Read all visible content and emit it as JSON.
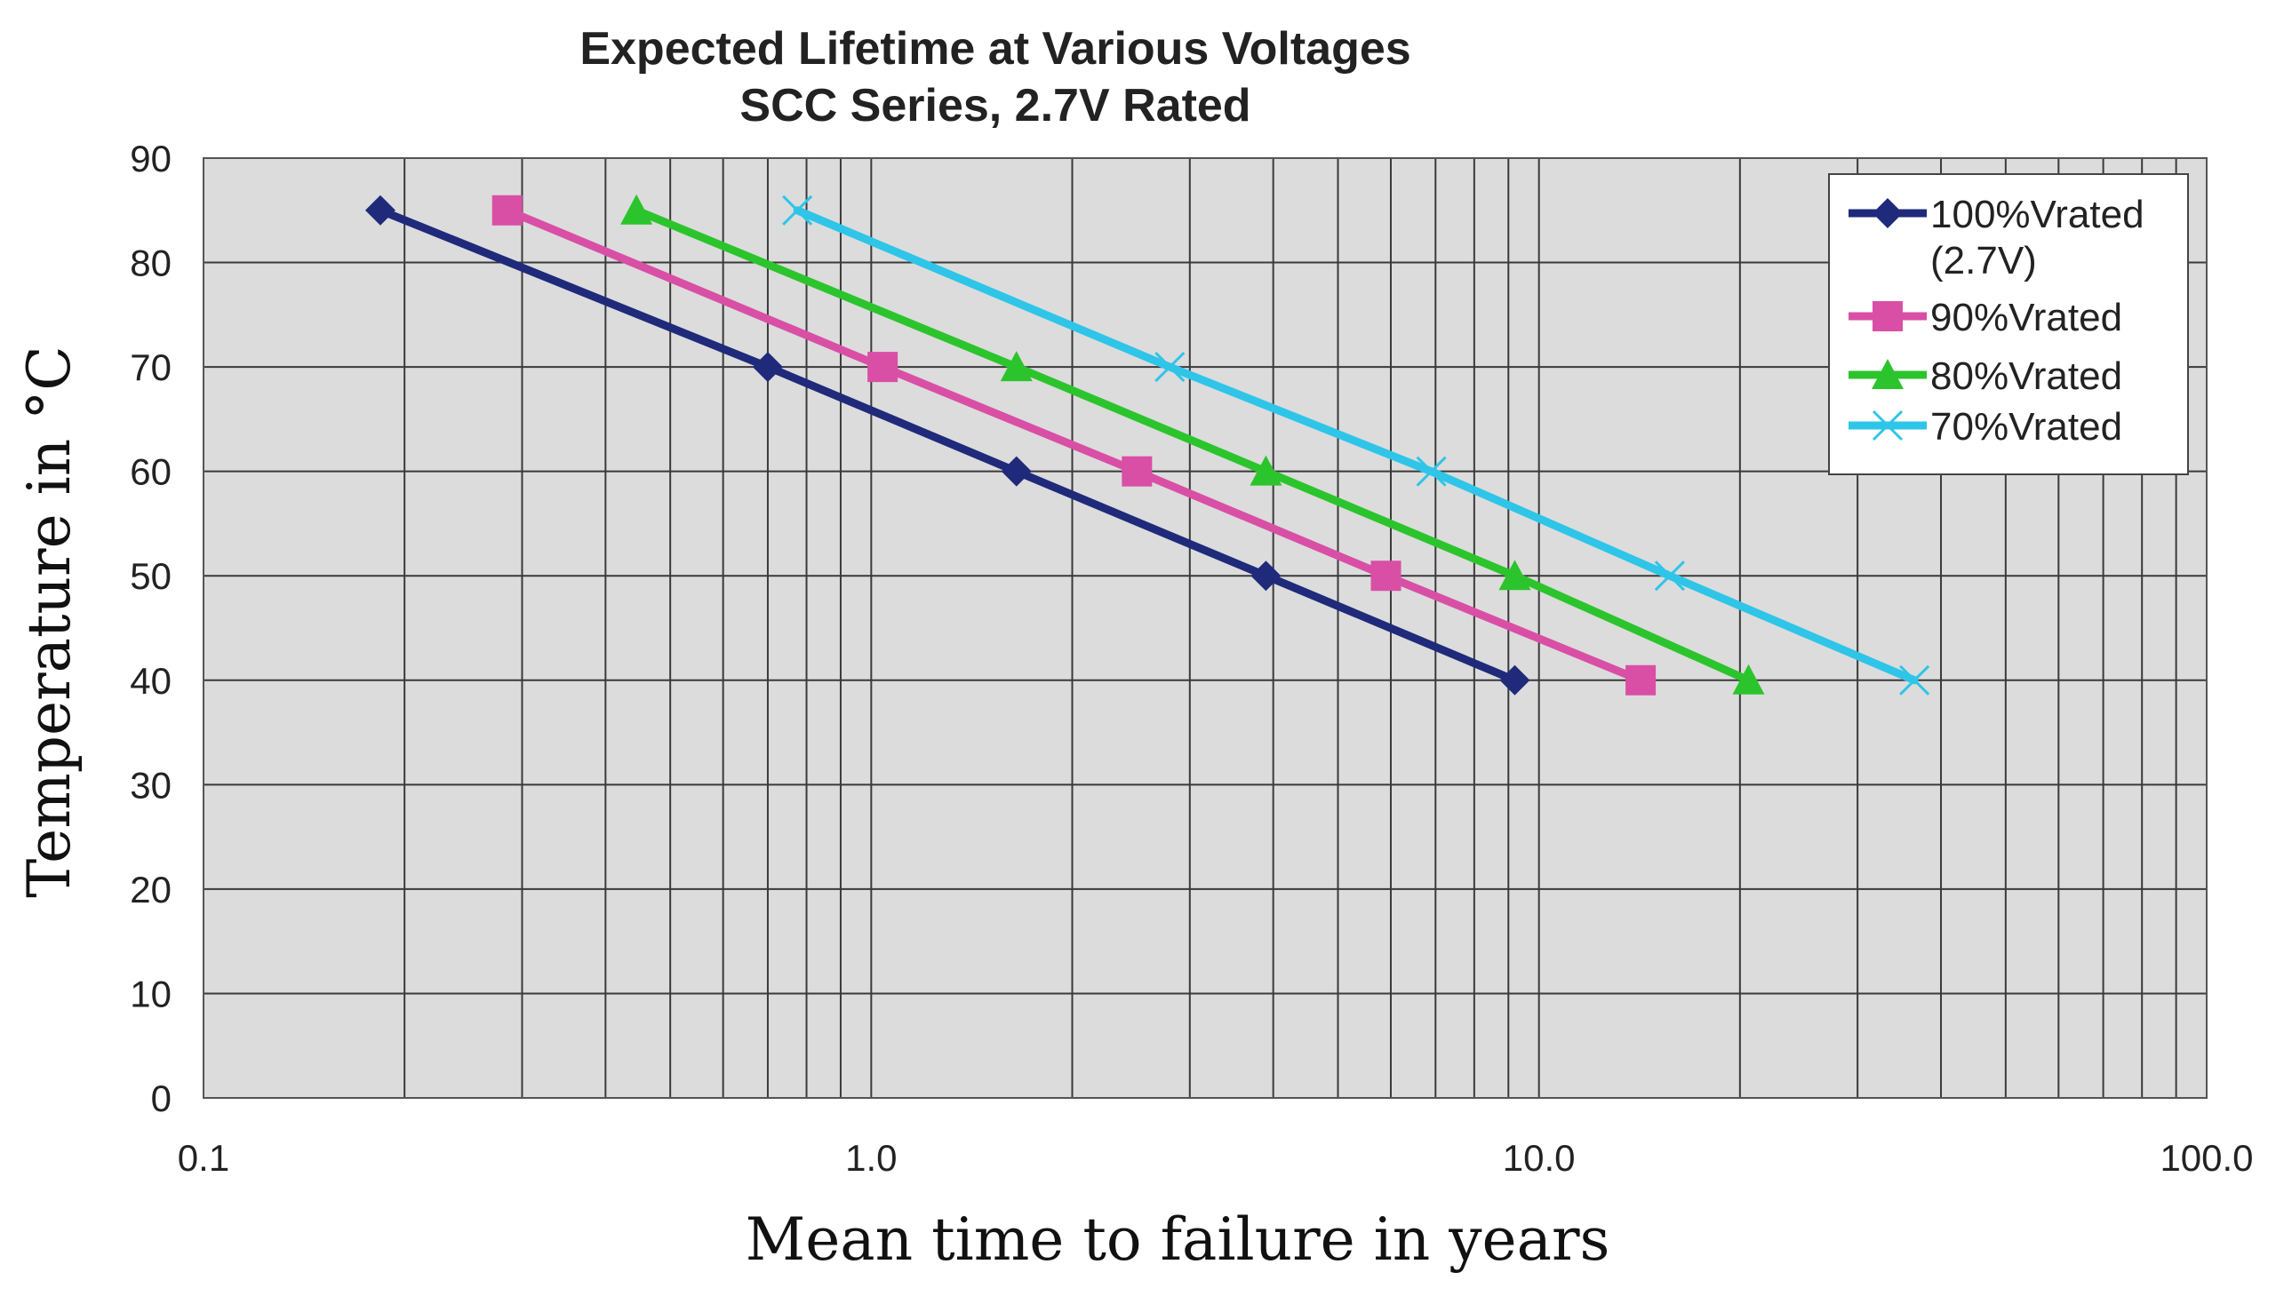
{
  "chart_data": {
    "type": "line",
    "title": "Expected Lifetime at Various Voltages",
    "subtitle": "SCC Series, 2.7V Rated",
    "xlabel": "Mean time to failure in years",
    "ylabel": "Temperature in °C",
    "xscale": "log",
    "xlim": [
      0.1,
      100
    ],
    "ylim": [
      0,
      90
    ],
    "xticks": [
      0.1,
      1,
      10,
      100
    ],
    "xtick_labels": [
      "0.1",
      "1.0",
      "10.0",
      "100.0"
    ],
    "yticks": [
      0,
      10,
      20,
      30,
      40,
      50,
      60,
      70,
      80,
      90
    ],
    "ytick_labels": [
      "0",
      "10",
      "20",
      "30",
      "40",
      "50",
      "60",
      "70",
      "80",
      "90"
    ],
    "grid": true,
    "legend_position": "top-right",
    "series": [
      {
        "name": "100%Vrated (2.7V)",
        "legend_lines": [
          "100%Vrated",
          "(2.7V)"
        ],
        "color": "#1f2a7a",
        "marker": "diamond",
        "points": [
          [
            0.184,
            85
          ],
          [
            0.7,
            70
          ],
          [
            1.65,
            60
          ],
          [
            3.9,
            50
          ],
          [
            9.2,
            40
          ]
        ]
      },
      {
        "name": "90%Vrated",
        "legend_lines": [
          "90%Vrated"
        ],
        "color": "#d94fa6",
        "marker": "square",
        "points": [
          [
            0.285,
            85
          ],
          [
            1.04,
            70
          ],
          [
            2.5,
            60
          ],
          [
            5.9,
            50
          ],
          [
            14.2,
            40
          ]
        ]
      },
      {
        "name": "80%Vrated",
        "legend_lines": [
          "80%Vrated"
        ],
        "color": "#2cc42c",
        "marker": "triangle",
        "points": [
          [
            0.445,
            85
          ],
          [
            1.65,
            70
          ],
          [
            3.9,
            60
          ],
          [
            9.2,
            50
          ],
          [
            20.6,
            40
          ]
        ]
      },
      {
        "name": "70%Vrated",
        "legend_lines": [
          "70%Vrated"
        ],
        "color": "#2ec5e8",
        "marker": "x",
        "points": [
          [
            0.775,
            85
          ],
          [
            2.8,
            70
          ],
          [
            6.9,
            60
          ],
          [
            15.7,
            50
          ],
          [
            36.5,
            40
          ]
        ]
      }
    ]
  }
}
